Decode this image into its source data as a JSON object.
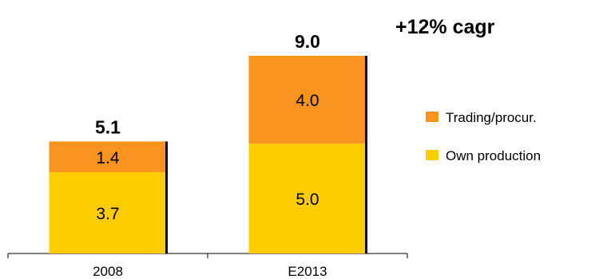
{
  "chart_data": {
    "type": "bar",
    "stacked": true,
    "categories": [
      "2008",
      "E2013"
    ],
    "series": [
      {
        "name": "Own production",
        "values": [
          3.7,
          5.0
        ],
        "color": "#FFCC00"
      },
      {
        "name": "Trading/procur.",
        "values": [
          1.4,
          4.0
        ],
        "color": "#F7931E"
      }
    ],
    "totals": [
      "5.1",
      "9.0"
    ],
    "segment_labels": [
      [
        "3.7",
        "1.4"
      ],
      [
        "5.0",
        "4.0"
      ]
    ],
    "annotation": "+12% cagr",
    "legend_position": "right",
    "legend_order": [
      "Trading/procur.",
      "Own production"
    ],
    "ylim": [
      0,
      9.0
    ],
    "grid": false
  }
}
